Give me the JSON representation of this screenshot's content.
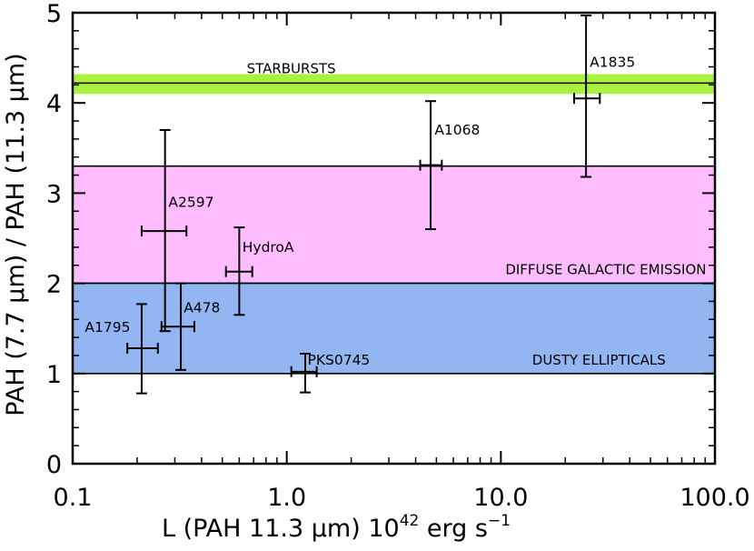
{
  "chart_data": {
    "type": "scatter",
    "x_scale": "log",
    "xlim": [
      0.1,
      100.0
    ],
    "ylim": [
      0,
      5
    ],
    "xlabel": {
      "main": "L (PAH 11.3 μm) 10",
      "sup1": "42",
      "mid": " erg s",
      "sup2": "−1"
    },
    "ylabel": "PAH (7.7 μm) / PAH (11.3 μm)",
    "x_ticks": [
      0.1,
      1.0,
      10.0,
      100.0
    ],
    "x_tick_labels": [
      "0.1",
      "1.0",
      "10.0",
      "100.0"
    ],
    "y_ticks": [
      0,
      1,
      2,
      3,
      4,
      5
    ],
    "y_tick_labels": [
      "0",
      "1",
      "2",
      "3",
      "4",
      "5"
    ],
    "grid": false,
    "bands": [
      {
        "name": "STARBURSTS",
        "y_low": 4.1,
        "y_high": 4.32,
        "line": 4.22,
        "color": "#aaf23f",
        "label_x": 0.65,
        "label_y": 4.33
      },
      {
        "name": "DIFFUSE GALACTIC EMISSION",
        "y_low": 2.0,
        "y_high": 3.3,
        "color": "#ffbdff",
        "label_x": 10.5,
        "label_y": 2.1
      },
      {
        "name": "DUSTY ELLIPTICALS",
        "y_low": 1.0,
        "y_high": 2.0,
        "color": "#93b6f3",
        "label_x": 14.0,
        "label_y": 1.1
      }
    ],
    "points": [
      {
        "name": "A1835",
        "x": 25.0,
        "y": 4.05,
        "x_err": [
          22.0,
          29.0
        ],
        "y_err": [
          3.18,
          4.97
        ],
        "label_x": 26.0,
        "label_y": 4.4
      },
      {
        "name": "A1068",
        "x": 4.7,
        "y": 3.31,
        "x_err": [
          4.2,
          5.3
        ],
        "y_err": [
          2.6,
          4.02
        ],
        "label_x": 4.9,
        "label_y": 3.65
      },
      {
        "name": "A2597",
        "x": 0.27,
        "y": 2.58,
        "x_err": [
          0.21,
          0.34
        ],
        "y_err": [
          1.47,
          3.7
        ],
        "label_x": 0.28,
        "label_y": 2.85
      },
      {
        "name": "HydroA",
        "x": 0.6,
        "y": 2.13,
        "x_err": [
          0.52,
          0.69
        ],
        "y_err": [
          1.65,
          2.62
        ],
        "label_x": 0.62,
        "label_y": 2.35
      },
      {
        "name": "A478",
        "x": 0.32,
        "y": 1.52,
        "x_err": [
          0.26,
          0.37
        ],
        "y_err": [
          1.04,
          2.0
        ],
        "label_x": 0.33,
        "label_y": 1.68
      },
      {
        "name": "A1795",
        "x": 0.21,
        "y": 1.28,
        "x_err": [
          0.18,
          0.25
        ],
        "y_err": [
          0.78,
          1.77
        ],
        "label_x": 0.114,
        "label_y": 1.46
      },
      {
        "name": "PKS0745",
        "x": 1.22,
        "y": 1.02,
        "x_err": [
          1.05,
          1.38
        ],
        "y_err": [
          0.79,
          1.22
        ],
        "label_x": 1.25,
        "label_y": 1.1
      }
    ]
  }
}
